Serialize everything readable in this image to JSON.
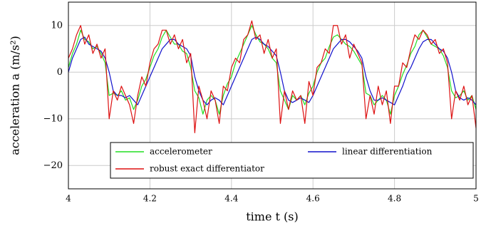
{
  "chart_data": {
    "type": "line",
    "xlabel": "time t (s)",
    "ylabel": "acceleration a (m/s²)",
    "x": [
      4,
      4.01,
      4.02,
      4.03,
      4.04,
      4.05,
      4.06,
      4.07,
      4.08,
      4.09,
      4.1,
      4.11,
      4.12,
      4.13,
      4.14,
      4.15,
      4.16,
      4.17,
      4.18,
      4.19,
      4.2,
      4.21,
      4.22,
      4.23,
      4.24,
      4.25,
      4.26,
      4.27,
      4.28,
      4.29,
      4.3,
      4.31,
      4.32,
      4.33,
      4.34,
      4.35,
      4.36,
      4.37,
      4.38,
      4.39,
      4.4,
      4.41,
      4.42,
      4.43,
      4.44,
      4.45,
      4.46,
      4.47,
      4.48,
      4.49,
      4.5,
      4.51,
      4.52,
      4.53,
      4.54,
      4.55,
      4.56,
      4.57,
      4.58,
      4.59,
      4.6,
      4.61,
      4.62,
      4.63,
      4.64,
      4.65,
      4.66,
      4.67,
      4.68,
      4.69,
      4.7,
      4.71,
      4.72,
      4.73,
      4.74,
      4.75,
      4.76,
      4.77,
      4.78,
      4.79,
      4.8,
      4.81,
      4.82,
      4.83,
      4.84,
      4.85,
      4.86,
      4.87,
      4.88,
      4.89,
      4.9,
      4.91,
      4.92,
      4.93,
      4.94,
      4.95,
      4.96,
      4.97,
      4.98,
      4.99,
      5
    ],
    "series": [
      {
        "name": "accelerometer",
        "color": "#22dd22",
        "values": [
          1,
          4,
          6,
          9,
          7,
          6.5,
          5,
          5.5,
          4,
          2,
          -5,
          -4.5,
          -5,
          -4,
          -6,
          -5.5,
          -8,
          -6,
          -3,
          -1.5,
          1,
          3.5,
          5,
          7.5,
          9,
          7.5,
          6,
          6,
          4.5,
          4,
          1,
          -4,
          -5.5,
          -9,
          -6,
          -5,
          -6,
          -9,
          -5,
          -2.5,
          -1,
          2,
          4,
          6,
          8,
          10,
          8,
          6.5,
          6,
          5,
          3,
          2,
          -4,
          -6,
          -8,
          -5,
          -6,
          -5,
          -7,
          -4.5,
          -3,
          0,
          2,
          3,
          5.5,
          7.5,
          8,
          7,
          6,
          5.5,
          4.5,
          3,
          1.5,
          -4.5,
          -5,
          -7,
          -6,
          -5,
          -6,
          -9,
          -5,
          -3,
          -0.5,
          1.5,
          4,
          5.5,
          8,
          9,
          7.5,
          6,
          5.5,
          5,
          3.5,
          1,
          -4,
          -5.5,
          -5,
          -4,
          -6,
          -5,
          -8
        ]
      },
      {
        "name": "linear differentiation",
        "color": "#1111cc",
        "values": [
          0,
          3,
          5,
          7,
          7.5,
          6,
          5.5,
          5,
          4.5,
          3,
          0,
          -4,
          -5,
          -5,
          -5.5,
          -5,
          -6,
          -7,
          -5,
          -3,
          -1,
          1,
          3,
          5,
          6,
          7,
          7,
          6,
          5.5,
          5,
          3.5,
          -1,
          -4,
          -6,
          -7,
          -6,
          -5.5,
          -6,
          -7,
          -5,
          -3,
          -1,
          1,
          3,
          5,
          7,
          7.5,
          7,
          6,
          5.5,
          4.5,
          3.5,
          0,
          -4,
          -6,
          -6.5,
          -6,
          -5.5,
          -6,
          -6.5,
          -5,
          -3,
          -1,
          1,
          3,
          5,
          6,
          7,
          7,
          6.5,
          5.5,
          4.5,
          3,
          -1,
          -4,
          -6,
          -6,
          -5.5,
          -6,
          -6.5,
          -7,
          -5,
          -3,
          -0.5,
          1,
          3,
          5,
          6.5,
          7,
          7,
          6,
          5,
          4.5,
          3,
          0,
          -4,
          -5.5,
          -6,
          -5.5,
          -6,
          -7
        ]
      },
      {
        "name": "robust exact differentiator",
        "color": "#dd1111",
        "values": [
          3,
          5,
          8,
          10,
          6,
          8,
          4,
          6,
          3,
          5,
          -10,
          -4,
          -6,
          -3,
          -5,
          -7,
          -11,
          -5,
          -1,
          -3,
          2,
          5,
          6,
          9,
          9,
          6,
          8,
          5,
          7,
          2,
          4,
          -13,
          -3,
          -6,
          -10,
          -4,
          -6,
          -11,
          -3,
          -4,
          1,
          3,
          2,
          7,
          8,
          11,
          7,
          8,
          4,
          7,
          3,
          5,
          -11,
          -4,
          -8,
          -4,
          -6,
          -5,
          -11,
          -2,
          -5,
          1,
          2,
          5,
          4,
          10,
          10,
          6,
          8,
          3,
          6,
          4,
          2,
          -10,
          -5,
          -9,
          -3,
          -7,
          -4,
          -11,
          -3,
          -3,
          2,
          1,
          5,
          8,
          7,
          9,
          8,
          6,
          7,
          4,
          5,
          2,
          -10,
          -4,
          -6,
          -3,
          -7,
          -5,
          -12
        ]
      }
    ],
    "xlim": [
      4,
      5
    ],
    "xticks": [
      4,
      4.2,
      4.4,
      4.6,
      4.8,
      5
    ],
    "ylim": [
      -25,
      15
    ],
    "yticks": [
      {
        "value": -20,
        "label": "−20"
      },
      {
        "value": -10,
        "label": "−10"
      },
      0,
      10
    ],
    "grid": true
  }
}
